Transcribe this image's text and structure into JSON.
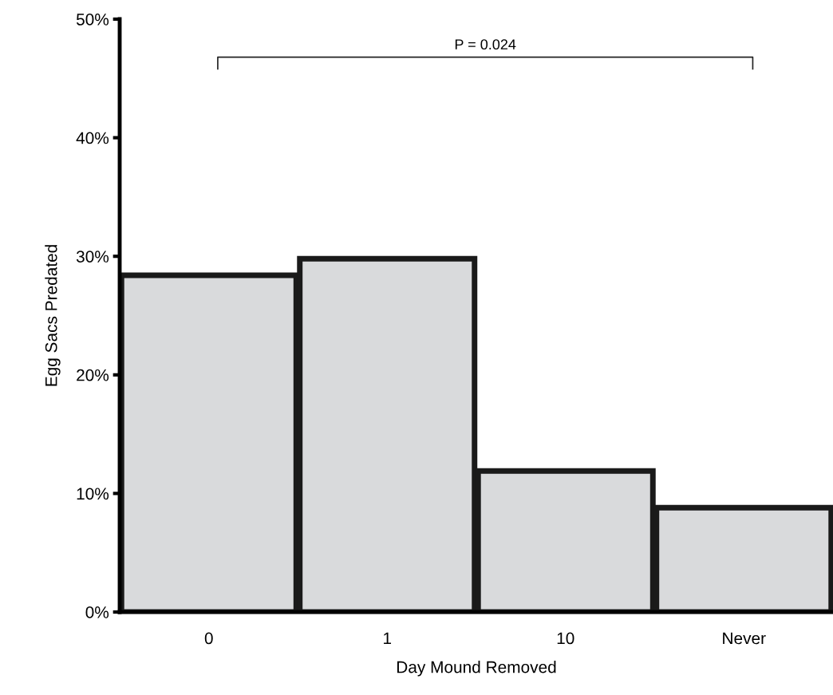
{
  "chart_data": {
    "type": "bar",
    "xlabel": "Day Mound Removed",
    "ylabel": "Egg Sacs Predated",
    "categories": [
      "0",
      "1",
      "10",
      "Never"
    ],
    "values": [
      28.4,
      29.8,
      11.9,
      8.8
    ],
    "color": "#d9dadc",
    "ylim": [
      0,
      50
    ],
    "yticks": [
      {
        "value": 0,
        "label": "0%"
      },
      {
        "value": 10,
        "label": "10%"
      },
      {
        "value": 20,
        "label": "20%"
      },
      {
        "value": 30,
        "label": "30%"
      },
      {
        "value": 40,
        "label": "40%"
      },
      {
        "value": 50,
        "label": "50%"
      }
    ],
    "annotations": [
      "P = 0.024"
    ],
    "grid": false,
    "legend": false
  }
}
